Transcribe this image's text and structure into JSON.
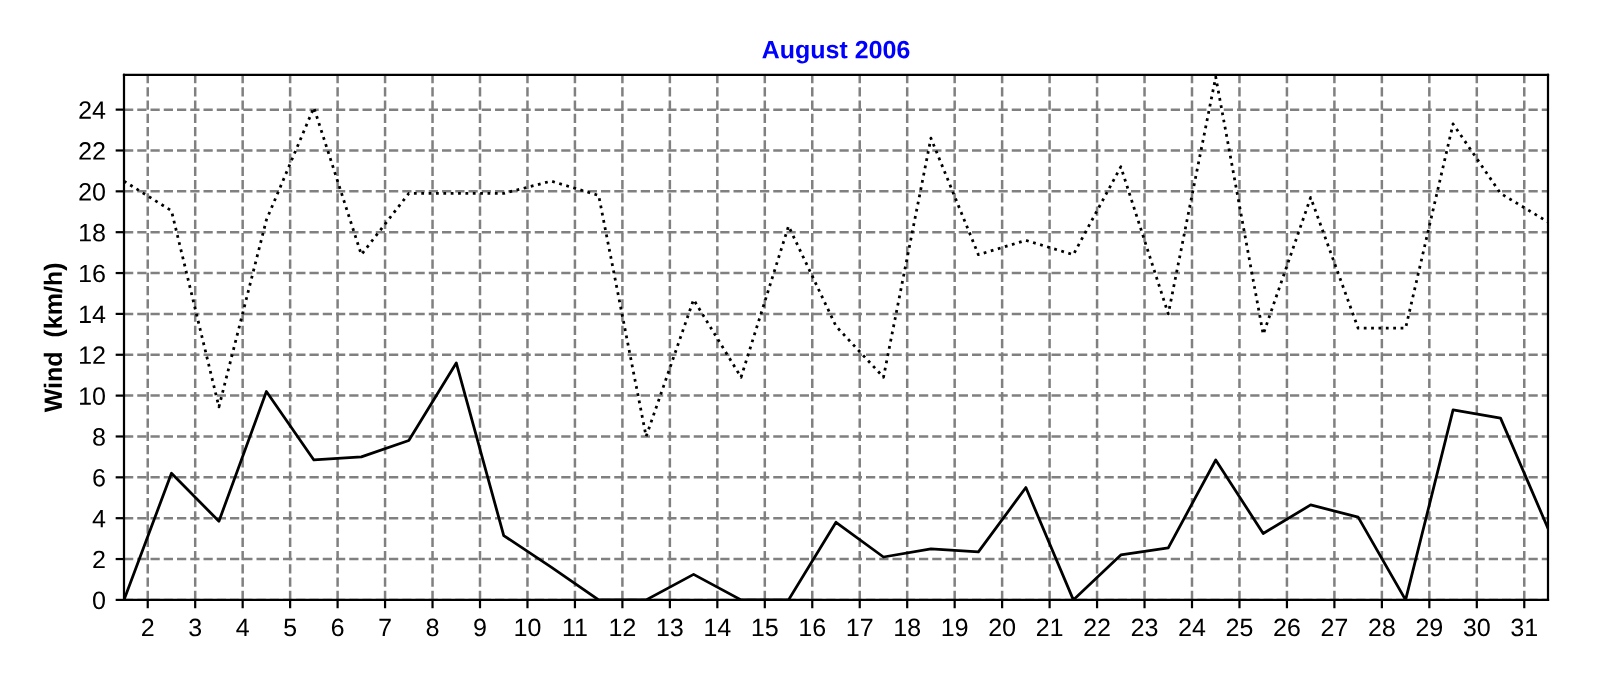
{
  "chart_data": {
    "type": "line",
    "title": "August 2006",
    "ylabel": "Wind  (km/h)",
    "x": [
      1,
      2,
      3,
      4,
      5,
      6,
      7,
      8,
      9,
      10,
      11,
      12,
      13,
      14,
      15,
      16,
      17,
      18,
      19,
      20,
      21,
      22,
      23,
      24,
      25,
      26,
      27,
      28,
      29,
      30,
      31
    ],
    "series": [
      {
        "color": "#000000",
        "line_style": "dotted",
        "values": [
          20.5,
          19.05,
          9.45,
          18.6,
          24.1,
          16.9,
          19.9,
          19.9,
          19.9,
          20.5,
          19.8,
          8.0,
          14.7,
          10.9,
          18.3,
          13.4,
          10.9,
          22.6,
          16.9,
          17.6,
          16.9,
          21.2,
          14.0,
          25.6,
          13.0,
          19.7,
          13.3,
          13.3,
          23.3,
          19.9,
          18.5
        ]
      },
      {
        "color": "#000000",
        "line_style": "solid",
        "values": [
          0,
          6.2,
          3.85,
          10.2,
          6.85,
          7.0,
          7.8,
          11.6,
          3.15,
          1.6,
          0,
          0,
          1.25,
          0,
          0,
          3.8,
          2.1,
          2.5,
          2.35,
          5.5,
          0,
          2.2,
          2.55,
          6.85,
          3.25,
          4.65,
          4.05,
          0,
          9.3,
          8.9,
          3.5
        ]
      }
    ],
    "xlim": [
      1,
      31
    ],
    "xticks": [
      {
        "value": 1.5,
        "label": "2"
      },
      {
        "value": 2.5,
        "label": "3"
      },
      {
        "value": 3.5,
        "label": "4"
      },
      {
        "value": 4.5,
        "label": "5"
      },
      {
        "value": 5.5,
        "label": "6"
      },
      {
        "value": 6.5,
        "label": "7"
      },
      {
        "value": 7.5,
        "label": "8"
      },
      {
        "value": 8.5,
        "label": "9"
      },
      {
        "value": 9.5,
        "label": "10"
      },
      {
        "value": 10.5,
        "label": "11"
      },
      {
        "value": 11.5,
        "label": "12"
      },
      {
        "value": 12.5,
        "label": "13"
      },
      {
        "value": 13.5,
        "label": "14"
      },
      {
        "value": 14.5,
        "label": "15"
      },
      {
        "value": 15.5,
        "label": "16"
      },
      {
        "value": 16.5,
        "label": "17"
      },
      {
        "value": 17.5,
        "label": "18"
      },
      {
        "value": 18.5,
        "label": "19"
      },
      {
        "value": 19.5,
        "label": "20"
      },
      {
        "value": 20.5,
        "label": "21"
      },
      {
        "value": 21.5,
        "label": "22"
      },
      {
        "value": 22.5,
        "label": "23"
      },
      {
        "value": 23.5,
        "label": "24"
      },
      {
        "value": 24.5,
        "label": "25"
      },
      {
        "value": 25.5,
        "label": "26"
      },
      {
        "value": 26.5,
        "label": "27"
      },
      {
        "value": 27.5,
        "label": "28"
      },
      {
        "value": 28.5,
        "label": "29"
      },
      {
        "value": 29.5,
        "label": "30"
      },
      {
        "value": 30.5,
        "label": "31"
      }
    ],
    "ylim": [
      0,
      25.7
    ],
    "yticks": [
      0,
      2,
      4,
      6,
      8,
      10,
      12,
      14,
      16,
      18,
      20,
      22,
      24
    ],
    "grid": true,
    "marker": "none"
  }
}
